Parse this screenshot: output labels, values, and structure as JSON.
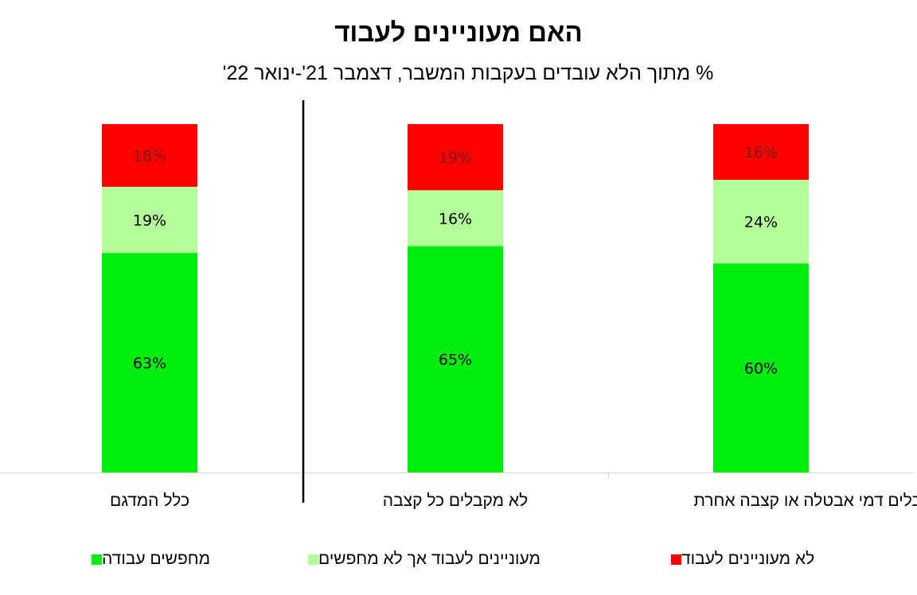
{
  "chart_data": {
    "type": "bar",
    "stacked": true,
    "title": "האם מעוניינים לעבוד",
    "subtitle": "% מתוך הלא עובדים בעקבות המשבר, דצמבר 21'-ינואר 22'",
    "categories": [
      "כלל המדגם",
      "לא מקבלים כל קצבה",
      "מקבלים דמי אבטלה או קצבה אחרת"
    ],
    "series": [
      {
        "name": "מחפשים עבודה",
        "color": "#00ee0f",
        "values": [
          63,
          65,
          60
        ]
      },
      {
        "name": "מעוניינים לעבוד אך לא מחפשים",
        "color": "#b3ff99",
        "values": [
          19,
          16,
          24
        ]
      },
      {
        "name": "לא מעוניינים לעבוד",
        "color": "#ff0000",
        "values": [
          18,
          19,
          16
        ]
      }
    ],
    "value_suffix": "%",
    "ylim": [
      0,
      100
    ],
    "grid": false,
    "legend_position": "bottom",
    "separator_after_category": 0
  }
}
